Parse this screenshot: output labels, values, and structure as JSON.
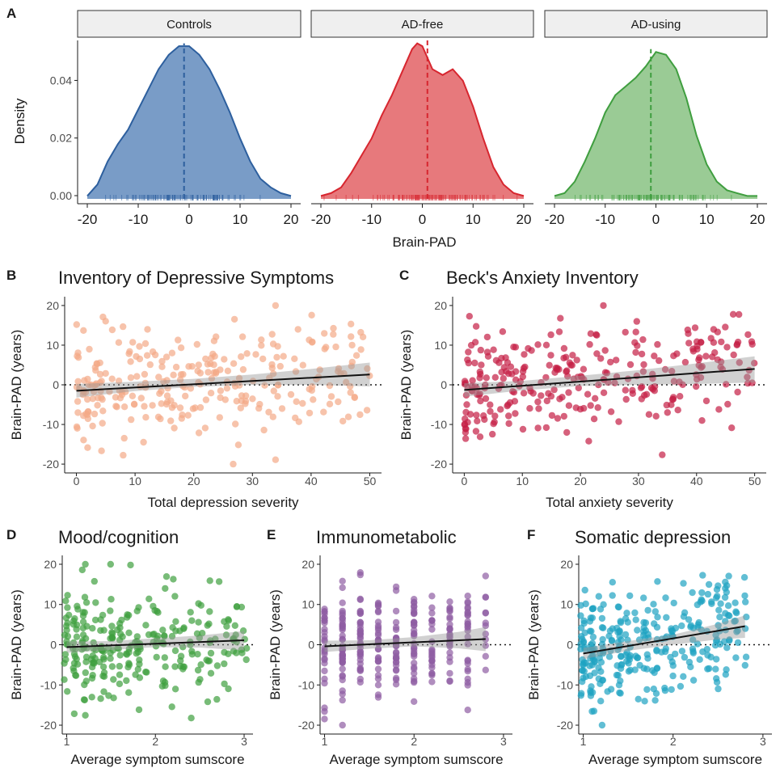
{
  "panel_letters": [
    "A",
    "B",
    "C",
    "D",
    "E",
    "F"
  ],
  "colors": {
    "controls": "#2d5f9e",
    "controls_fill": "#6a91c1",
    "adfree": "#d7262f",
    "adfree_fill": "#e46a6e",
    "adusing": "#3f9e3f",
    "adusing_fill": "#8fc58a",
    "depression": "#f4a987",
    "anxiety": "#c41e44",
    "mood": "#3fa03f",
    "immuno": "#8e5ca3",
    "somatic": "#1ea2c2",
    "strip_bg": "#efefef"
  },
  "chart_data": [
    {
      "type": "area",
      "panel": "A",
      "ylabel": "Density",
      "xlabel": "Brain-PAD",
      "xlim": [
        -20,
        20
      ],
      "ylim": [
        0,
        0.055
      ],
      "x_ticks": [
        "-20",
        "-10",
        "0",
        "10",
        "20"
      ],
      "y_ticks": [
        "0.00",
        "0.02",
        "0.04"
      ],
      "facets": [
        {
          "name": "Controls",
          "mean_line": -1,
          "curve": [
            [
              -20,
              0.001
            ],
            [
              -18,
              0.005
            ],
            [
              -16,
              0.013
            ],
            [
              -14,
              0.019
            ],
            [
              -12,
              0.024
            ],
            [
              -10,
              0.031
            ],
            [
              -8,
              0.038
            ],
            [
              -6,
              0.045
            ],
            [
              -4,
              0.05
            ],
            [
              -2,
              0.053
            ],
            [
              0,
              0.053
            ],
            [
              2,
              0.05
            ],
            [
              4,
              0.045
            ],
            [
              6,
              0.038
            ],
            [
              8,
              0.03
            ],
            [
              10,
              0.021
            ],
            [
              12,
              0.013
            ],
            [
              14,
              0.007
            ],
            [
              16,
              0.004
            ],
            [
              18,
              0.002
            ],
            [
              20,
              0.001
            ]
          ]
        },
        {
          "name": "AD-free",
          "mean_line": 1,
          "curve": [
            [
              -20,
              0.001
            ],
            [
              -18,
              0.002
            ],
            [
              -16,
              0.004
            ],
            [
              -14,
              0.009
            ],
            [
              -12,
              0.015
            ],
            [
              -10,
              0.021
            ],
            [
              -8,
              0.029
            ],
            [
              -6,
              0.036
            ],
            [
              -4,
              0.044
            ],
            [
              -2,
              0.052
            ],
            [
              -1,
              0.054
            ],
            [
              0,
              0.053
            ],
            [
              2,
              0.045
            ],
            [
              4,
              0.043
            ],
            [
              6,
              0.045
            ],
            [
              8,
              0.041
            ],
            [
              10,
              0.032
            ],
            [
              12,
              0.021
            ],
            [
              14,
              0.011
            ],
            [
              16,
              0.005
            ],
            [
              18,
              0.002
            ],
            [
              20,
              0.001
            ]
          ]
        },
        {
          "name": "AD-using",
          "mean_line": -1,
          "curve": [
            [
              -20,
              0.001
            ],
            [
              -18,
              0.002
            ],
            [
              -16,
              0.006
            ],
            [
              -14,
              0.013
            ],
            [
              -12,
              0.021
            ],
            [
              -10,
              0.03
            ],
            [
              -8,
              0.036
            ],
            [
              -6,
              0.039
            ],
            [
              -4,
              0.042
            ],
            [
              -2,
              0.046
            ],
            [
              0,
              0.051
            ],
            [
              2,
              0.05
            ],
            [
              4,
              0.045
            ],
            [
              6,
              0.035
            ],
            [
              8,
              0.022
            ],
            [
              10,
              0.012
            ],
            [
              12,
              0.006
            ],
            [
              14,
              0.003
            ],
            [
              16,
              0.002
            ],
            [
              18,
              0.001
            ],
            [
              20,
              0.001
            ]
          ]
        }
      ]
    },
    {
      "type": "scatter",
      "panel": "B",
      "title": "Inventory of Depressive Symptoms",
      "xlabel": "Total depression severity",
      "ylabel": "Brain-PAD (years)",
      "xlim": [
        -2,
        52
      ],
      "ylim": [
        -21,
        21
      ],
      "x_ticks": [
        0,
        10,
        20,
        30,
        40,
        50
      ],
      "y_ticks": [
        -20,
        -10,
        0,
        10,
        20
      ],
      "fit": {
        "x": [
          0,
          50
        ],
        "y": [
          -1.5,
          2.6
        ]
      },
      "ci": {
        "x": [
          0,
          10,
          20,
          30,
          40,
          50
        ],
        "lo": [
          -3.2,
          -1.6,
          -0.5,
          0.0,
          0.0,
          -0.4
        ],
        "hi": [
          0.2,
          0.8,
          1.5,
          2.6,
          4.0,
          5.6
        ]
      },
      "n_points": 280,
      "xdist": [
        0,
        50
      ],
      "seed": 11
    },
    {
      "type": "scatter",
      "panel": "C",
      "title": "Beck's Anxiety Inventory",
      "xlabel": "Total anxiety severity",
      "ylabel": "Brain-PAD (years)",
      "xlim": [
        -2,
        52
      ],
      "ylim": [
        -21,
        21
      ],
      "x_ticks": [
        0,
        10,
        20,
        30,
        40,
        50
      ],
      "y_ticks": [
        -20,
        -10,
        0,
        10,
        20
      ],
      "fit": {
        "x": [
          0,
          50
        ],
        "y": [
          -1.3,
          4.0
        ]
      },
      "ci": {
        "x": [
          0,
          10,
          20,
          30,
          40,
          50
        ],
        "lo": [
          -3.0,
          -1.4,
          -0.3,
          0.0,
          0.2,
          0.6
        ],
        "hi": [
          0.4,
          1.0,
          2.3,
          3.7,
          5.4,
          7.2
        ]
      },
      "n_points": 290,
      "xdist": [
        0,
        50
      ],
      "seed": 23
    },
    {
      "type": "scatter",
      "panel": "D",
      "title": "Mood/cognition",
      "xlabel": "Average symptom sumscore",
      "ylabel": "Brain-PAD (years)",
      "xlim": [
        0.95,
        3.1
      ],
      "ylim": [
        -21,
        21
      ],
      "x_ticks": [
        1,
        2,
        3
      ],
      "y_ticks": [
        -20,
        -10,
        0,
        10,
        20
      ],
      "fit": {
        "x": [
          1,
          3
        ],
        "y": [
          -0.6,
          1.1
        ]
      },
      "ci": {
        "x": [
          1,
          1.5,
          2,
          2.5,
          3
        ],
        "lo": [
          -2.0,
          -1.3,
          -0.6,
          -0.7,
          -1.4
        ],
        "hi": [
          0.8,
          0.9,
          1.6,
          2.3,
          3.4
        ]
      },
      "n_points": 280,
      "xdist": [
        1,
        3
      ],
      "seed": 37
    },
    {
      "type": "scatter",
      "panel": "E",
      "title": "Immunometabolic",
      "xlabel": "Average symptom sumscore",
      "ylabel": "Brain-PAD (years)",
      "xlim": [
        0.95,
        3.1
      ],
      "ylim": [
        -21,
        21
      ],
      "x_ticks": [
        1,
        2,
        3
      ],
      "y_ticks": [
        -20,
        -10,
        0,
        10,
        20
      ],
      "fit": {
        "x": [
          1,
          2.8
        ],
        "y": [
          -0.4,
          1.4
        ]
      },
      "ci": {
        "x": [
          1,
          1.5,
          2,
          2.5,
          2.8
        ],
        "lo": [
          -1.8,
          -1.0,
          -0.4,
          -0.9,
          -1.6
        ],
        "hi": [
          1.0,
          1.1,
          1.9,
          3.2,
          4.4
        ]
      },
      "n_points": 290,
      "xdist": [
        1,
        2.8
      ],
      "seed": 41
    },
    {
      "type": "scatter",
      "panel": "F",
      "title": "Somatic depression",
      "xlabel": "Average symptom sumscore",
      "ylabel": "Brain-PAD (years)",
      "xlim": [
        0.95,
        3.1
      ],
      "ylim": [
        -21,
        21
      ],
      "x_ticks": [
        1,
        2,
        3
      ],
      "y_ticks": [
        -20,
        -10,
        0,
        10,
        20
      ],
      "fit": {
        "x": [
          1,
          2.8
        ],
        "y": [
          -2.2,
          4.6
        ]
      },
      "ci": {
        "x": [
          1,
          1.5,
          2,
          2.5,
          2.8
        ],
        "lo": [
          -3.6,
          -1.5,
          0.0,
          1.3,
          1.7
        ],
        "hi": [
          -0.8,
          0.9,
          2.5,
          5.2,
          7.3
        ]
      },
      "n_points": 300,
      "xdist": [
        1,
        2.8
      ],
      "seed": 53
    }
  ]
}
